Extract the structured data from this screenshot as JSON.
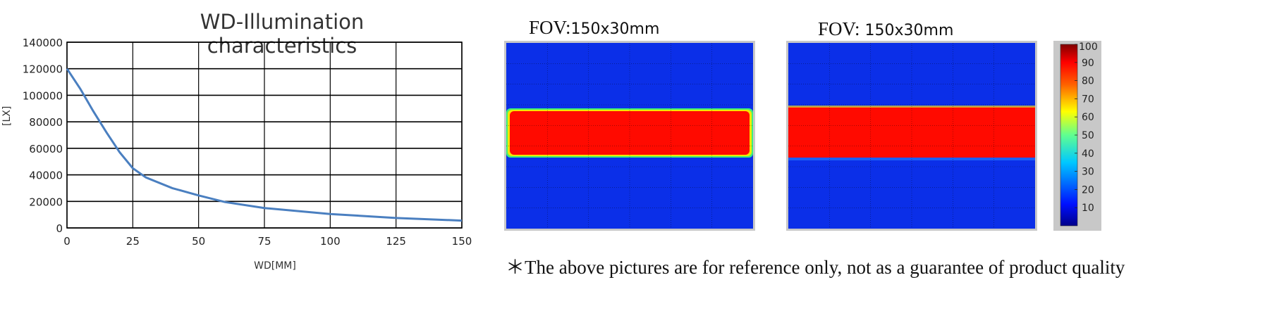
{
  "chart_data": [
    {
      "type": "line",
      "title": "WD-Illumination characteristics",
      "xlabel": "WD[MM]",
      "ylabel": "[LX]",
      "xlim": [
        0,
        150
      ],
      "ylim": [
        0,
        140000
      ],
      "x_ticks": [
        0,
        25,
        50,
        75,
        100,
        125,
        150
      ],
      "y_ticks": [
        0,
        20000,
        40000,
        60000,
        80000,
        100000,
        120000,
        140000
      ],
      "grid": true,
      "series_color": "#4a7fc0",
      "series": [
        {
          "x": [
            0,
            5,
            10,
            15,
            20,
            25,
            30,
            40,
            50,
            60,
            75,
            100,
            125,
            150
          ],
          "y": [
            120000,
            105000,
            88000,
            72000,
            57000,
            45000,
            38000,
            30000,
            24500,
            19500,
            15000,
            10500,
            7500,
            5500
          ]
        }
      ]
    },
    {
      "type": "heatmap",
      "title": "FOV:150x30mm",
      "title_prefix": "FOV:",
      "title_dim": "150x30mm",
      "description_band": "red illuminated rectangle with yellow-green edges on blue field"
    },
    {
      "type": "heatmap",
      "title": "FOV: 150x30mm",
      "title_prefix": "FOV:",
      "title_dim": " 150x30mm",
      "colorbar_ticks": [
        10,
        20,
        30,
        40,
        50,
        60,
        70,
        80,
        90,
        100
      ],
      "colorbar_max_label": "100"
    }
  ],
  "note": "＊The above pictures are for reference only, not as a guarantee of product quality",
  "colors": {
    "blue_field": "#0b2fe8",
    "red_band": "#ff0a00",
    "grid_dark": "#000000",
    "plot_frame": "#c8c8c8"
  }
}
